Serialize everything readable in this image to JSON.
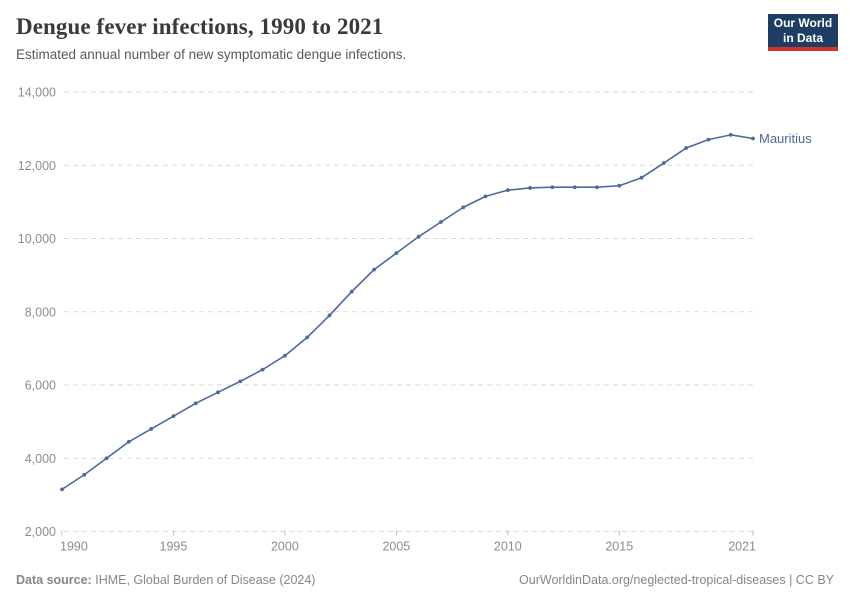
{
  "header": {
    "title": "Dengue fever infections, 1990 to 2021",
    "subtitle": "Estimated annual number of new symptomatic dengue infections."
  },
  "logo": {
    "line1": "Our World",
    "line2": "in Data",
    "background": "#1d3d63",
    "bar": "#d0342f"
  },
  "chart_data": {
    "type": "line",
    "title": "Dengue fever infections, 1990 to 2021",
    "subtitle": "Estimated annual number of new symptomatic dengue infections.",
    "xlabel": "",
    "ylabel": "",
    "x": [
      1990,
      1991,
      1992,
      1993,
      1994,
      1995,
      1996,
      1997,
      1998,
      1999,
      2000,
      2001,
      2002,
      2003,
      2004,
      2005,
      2006,
      2007,
      2008,
      2009,
      2010,
      2011,
      2012,
      2013,
      2014,
      2015,
      2016,
      2017,
      2018,
      2019,
      2020,
      2021
    ],
    "series": [
      {
        "name": "Mauritius",
        "color": "#4c6a9c",
        "values": [
          3150,
          3550,
          4000,
          4450,
          4800,
          5150,
          5500,
          5800,
          6100,
          6420,
          6800,
          7300,
          7900,
          8550,
          9150,
          9600,
          10050,
          10450,
          10850,
          11150,
          11320,
          11380,
          11400,
          11400,
          11400,
          11440,
          11660,
          12060,
          12470,
          12700,
          12830,
          12730
        ]
      }
    ],
    "ylim": [
      2000,
      14000
    ],
    "yticks": [
      2000,
      4000,
      6000,
      8000,
      10000,
      12000,
      14000
    ],
    "xticks": [
      1990,
      1995,
      2000,
      2005,
      2010,
      2015,
      2021
    ],
    "grid": "horizontal-dashed",
    "legend": "line-end-label",
    "grid_color": "#dadada",
    "tick_label_color": "#8d8d8d"
  },
  "footer": {
    "source_label": "Data source:",
    "source_text": "IHME, Global Burden of Disease (2024)",
    "credit": "OurWorldinData.org/neglected-tropical-diseases | CC BY"
  }
}
